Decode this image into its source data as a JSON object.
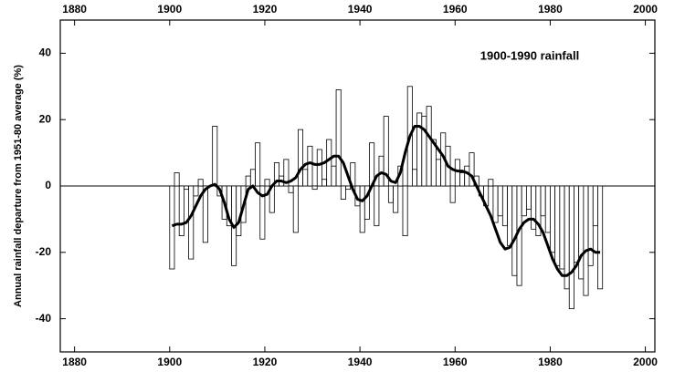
{
  "chart_data": {
    "type": "bar",
    "annotation": "1900-1990 rainfall",
    "y_label": "Annual rainfall departure from 1951-80 average (%)",
    "x": [
      1900,
      1901,
      1902,
      1903,
      1904,
      1905,
      1906,
      1907,
      1908,
      1909,
      1910,
      1911,
      1912,
      1913,
      1914,
      1915,
      1916,
      1917,
      1918,
      1919,
      1920,
      1921,
      1922,
      1923,
      1924,
      1925,
      1926,
      1927,
      1928,
      1929,
      1930,
      1931,
      1932,
      1933,
      1934,
      1935,
      1936,
      1937,
      1938,
      1939,
      1940,
      1941,
      1942,
      1943,
      1944,
      1945,
      1946,
      1947,
      1948,
      1949,
      1950,
      1951,
      1952,
      1953,
      1954,
      1955,
      1956,
      1957,
      1958,
      1959,
      1960,
      1961,
      1962,
      1963,
      1964,
      1965,
      1966,
      1967,
      1968,
      1969,
      1970,
      1971,
      1972,
      1973,
      1974,
      1975,
      1976,
      1977,
      1978,
      1979,
      1980,
      1981,
      1982,
      1983,
      1984,
      1985,
      1986,
      1987,
      1988,
      1989,
      1990
    ],
    "series": [
      {
        "type": "bar",
        "color": "#ffffff",
        "values": [
          -25,
          4,
          -15,
          -1,
          -22,
          -3,
          2,
          -17,
          0,
          18,
          -3,
          -10,
          -12,
          -24,
          -15,
          -11,
          3,
          5,
          13,
          -16,
          2,
          -8,
          7,
          3,
          8,
          -2,
          -14,
          17,
          5,
          12,
          -1,
          11,
          2,
          14,
          6,
          29,
          -4,
          -1,
          7,
          -6,
          -14,
          -10,
          13,
          -12,
          9,
          21,
          -5,
          -8,
          6,
          -15,
          30,
          5,
          22,
          21,
          24,
          14,
          8,
          16,
          12,
          -5,
          8,
          4,
          6,
          10,
          3,
          -3,
          -6,
          2,
          -11,
          -9,
          -12,
          -18,
          -27,
          -30,
          -9,
          -7,
          -13,
          -15,
          -9,
          -14,
          -20,
          -24,
          -25,
          -31,
          -37,
          -23,
          -28,
          -33,
          -24,
          -12,
          -31
        ]
      },
      {
        "type": "line",
        "color": "#000000",
        "values": [
          -12,
          -11.5,
          -11.5,
          -11,
          -9,
          -6,
          -3,
          -1,
          0,
          0.5,
          -1,
          -5,
          -10,
          -12.5,
          -11,
          -6,
          -1,
          0,
          -2,
          -3,
          -2.5,
          0,
          1.5,
          1.5,
          1,
          1.5,
          2.5,
          5,
          6.5,
          7,
          6.5,
          6.5,
          7,
          8,
          9,
          9,
          7,
          3,
          -1,
          -4,
          -4.5,
          -3,
          0,
          3,
          4,
          3.5,
          1.5,
          1,
          4,
          10,
          15,
          18,
          18,
          17,
          15,
          13,
          11,
          9,
          6,
          5,
          4.5,
          4.5,
          4,
          3,
          0,
          -3,
          -6,
          -9,
          -13,
          -17,
          -19,
          -18.5,
          -16,
          -13,
          -11,
          -10,
          -10,
          -11.5,
          -14,
          -18,
          -22,
          -25,
          -27,
          -27,
          -26,
          -24,
          -21,
          -19.5,
          -19,
          -20,
          -20
        ]
      }
    ],
    "xlim": [
      1877,
      2002
    ],
    "xticks": [
      1880,
      1900,
      1920,
      1940,
      1960,
      1980,
      2000
    ],
    "ylim": [
      -50,
      50
    ],
    "yticks": [
      -40,
      -20,
      0,
      20,
      40
    ]
  }
}
